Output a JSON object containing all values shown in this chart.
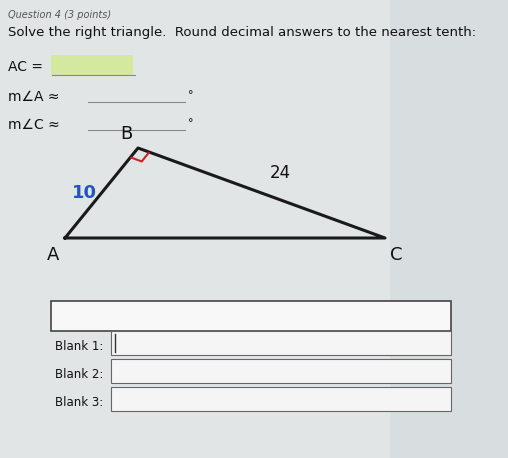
{
  "background_color": "#d8dde0",
  "paper_color": "#e8eaeb",
  "question_text": "Question 4 (3 points)",
  "question_subtext": "Solve the right triangle.  Round decimal answers to the nearest tenth:",
  "ac_label": "AC =",
  "ma_label": "m∠A ≈",
  "mc_label": "m∠C ≈",
  "degree_symbol": "°",
  "highlight_color": "#d4e8a0",
  "triangle": {
    "A": [
      0.1,
      0.36
    ],
    "B": [
      0.2,
      0.62
    ],
    "C": [
      0.74,
      0.36
    ]
  },
  "side_AB_label": "10",
  "side_AB_color": "#2255bb",
  "side_BC_label": "24",
  "vertex_labels": {
    "A": "A",
    "B": "B",
    "C": "C"
  },
  "triangle_color": "#1a1a1a",
  "right_angle_color": "#cc2222",
  "blank_box_color": "#f5f5f5",
  "blank_labels": [
    "Blank 1:",
    "Blank 2:",
    "Blank 3:"
  ]
}
